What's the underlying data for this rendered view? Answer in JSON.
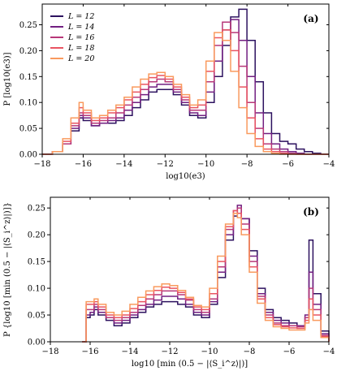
{
  "chart_data": [
    {
      "type": "line",
      "panel_label": "(a)",
      "xlabel": "log10(e3)",
      "ylabel": "P [log10(e3)]",
      "xlim": [
        -18,
        -4
      ],
      "ylim": [
        0,
        0.29
      ],
      "xticks": [
        -18,
        -16,
        -14,
        -12,
        -10,
        -8,
        -6,
        -4
      ],
      "yticks": [
        0.0,
        0.05,
        0.1,
        0.15,
        0.2,
        0.25
      ],
      "xtick_labels": [
        "−18",
        "−16",
        "−14",
        "−12",
        "−10",
        "−8",
        "−6",
        "−4"
      ],
      "ytick_labels": [
        "0.00",
        "0.05",
        "0.10",
        "0.15",
        "0.20",
        "0.25"
      ],
      "legend_position": "top-left",
      "x": [
        -18,
        -17.5,
        -17,
        -16.6,
        -16.2,
        -16,
        -15.6,
        -15.2,
        -14.8,
        -14.4,
        -14,
        -13.6,
        -13.2,
        -12.8,
        -12.4,
        -12,
        -11.6,
        -11.2,
        -10.8,
        -10.4,
        -10,
        -9.6,
        -9.2,
        -8.8,
        -8.4,
        -8,
        -7.6,
        -7.2,
        -6.8,
        -6.4,
        -6,
        -5.6,
        -5.2,
        -4.8,
        -4.4,
        -4
      ],
      "series": [
        {
          "name": "L = 12",
          "color": "#2c115f",
          "values": [
            0,
            0.005,
            0.02,
            0.045,
            0.07,
            0.065,
            0.055,
            0.06,
            0.06,
            0.065,
            0.075,
            0.09,
            0.105,
            0.12,
            0.125,
            0.125,
            0.115,
            0.095,
            0.075,
            0.07,
            0.1,
            0.15,
            0.21,
            0.265,
            0.28,
            0.22,
            0.14,
            0.08,
            0.04,
            0.025,
            0.02,
            0.01,
            0.005,
            0.002,
            0,
            0
          ]
        },
        {
          "name": "L = 14",
          "color": "#721f81",
          "values": [
            0,
            0.005,
            0.02,
            0.05,
            0.075,
            0.07,
            0.055,
            0.06,
            0.065,
            0.07,
            0.085,
            0.1,
            0.115,
            0.13,
            0.135,
            0.135,
            0.12,
            0.1,
            0.08,
            0.075,
            0.12,
            0.18,
            0.24,
            0.26,
            0.22,
            0.15,
            0.08,
            0.04,
            0.02,
            0.01,
            0.005,
            0.002,
            0,
            0,
            0,
            0
          ]
        },
        {
          "name": "L = 16",
          "color": "#b73779",
          "values": [
            0,
            0.005,
            0.02,
            0.055,
            0.08,
            0.075,
            0.06,
            0.065,
            0.07,
            0.08,
            0.095,
            0.11,
            0.125,
            0.14,
            0.145,
            0.14,
            0.125,
            0.105,
            0.085,
            0.085,
            0.14,
            0.21,
            0.255,
            0.235,
            0.17,
            0.1,
            0.05,
            0.02,
            0.01,
            0.005,
            0.002,
            0,
            0,
            0,
            0,
            0
          ]
        },
        {
          "name": "L = 18",
          "color": "#e95462",
          "values": [
            0,
            0.005,
            0.025,
            0.06,
            0.09,
            0.08,
            0.065,
            0.07,
            0.08,
            0.09,
            0.105,
            0.12,
            0.135,
            0.148,
            0.152,
            0.145,
            0.13,
            0.11,
            0.09,
            0.095,
            0.16,
            0.225,
            0.24,
            0.2,
            0.13,
            0.07,
            0.03,
            0.01,
            0.005,
            0.002,
            0,
            0,
            0,
            0,
            0,
            0
          ]
        },
        {
          "name": "L = 20",
          "color": "#f99a5e",
          "values": [
            0,
            0.005,
            0.03,
            0.07,
            0.1,
            0.085,
            0.07,
            0.075,
            0.085,
            0.095,
            0.11,
            0.13,
            0.145,
            0.155,
            0.158,
            0.15,
            0.135,
            0.115,
            0.095,
            0.105,
            0.18,
            0.235,
            0.22,
            0.16,
            0.09,
            0.04,
            0.015,
            0.005,
            0.002,
            0,
            0,
            0,
            0,
            0,
            0,
            0
          ]
        }
      ]
    },
    {
      "type": "line",
      "panel_label": "(b)",
      "xlabel": "log10 [min (0.5 − |⟨S_i^z⟩|)]",
      "ylabel": "P {log10 [min (0.5 − |⟨S_i^z⟩|)]}",
      "xlim": [
        -18,
        -4
      ],
      "ylim": [
        0,
        0.27
      ],
      "xticks": [
        -18,
        -16,
        -14,
        -12,
        -10,
        -8,
        -6,
        -4
      ],
      "yticks": [
        0.0,
        0.05,
        0.1,
        0.15,
        0.2,
        0.25
      ],
      "xtick_labels": [
        "−18",
        "−16",
        "−14",
        "−12",
        "−10",
        "−8",
        "−6",
        "−4"
      ],
      "ytick_labels": [
        "0.00",
        "0.05",
        "0.10",
        "0.15",
        "0.20",
        "0.25"
      ],
      "x": [
        -16.4,
        -16.2,
        -16,
        -15.8,
        -15.6,
        -15.2,
        -14.8,
        -14.4,
        -14,
        -13.6,
        -13.2,
        -12.8,
        -12.4,
        -12,
        -11.6,
        -11.2,
        -10.8,
        -10.4,
        -10,
        -9.6,
        -9.2,
        -8.8,
        -8.6,
        -8.4,
        -8,
        -7.6,
        -7.2,
        -6.8,
        -6.4,
        -6,
        -5.6,
        -5.2,
        -5,
        -4.8,
        -4.4,
        -4
      ],
      "series": [
        {
          "name": "L = 12",
          "color": "#2c115f",
          "values": [
            0,
            0.045,
            0.05,
            0.06,
            0.05,
            0.04,
            0.03,
            0.035,
            0.045,
            0.055,
            0.065,
            0.07,
            0.075,
            0.075,
            0.07,
            0.065,
            0.05,
            0.045,
            0.07,
            0.12,
            0.19,
            0.235,
            0.25,
            0.23,
            0.17,
            0.1,
            0.06,
            0.045,
            0.04,
            0.035,
            0.03,
            0.045,
            0.19,
            0.09,
            0.02,
            0
          ]
        },
        {
          "name": "L = 14",
          "color": "#721f81",
          "values": [
            0,
            0.05,
            0.055,
            0.065,
            0.055,
            0.045,
            0.035,
            0.04,
            0.05,
            0.06,
            0.07,
            0.078,
            0.085,
            0.085,
            0.08,
            0.07,
            0.055,
            0.05,
            0.075,
            0.13,
            0.2,
            0.24,
            0.255,
            0.23,
            0.16,
            0.09,
            0.055,
            0.04,
            0.035,
            0.03,
            0.03,
            0.05,
            0.13,
            0.07,
            0.015,
            0
          ]
        },
        {
          "name": "L = 16",
          "color": "#b73779",
          "values": [
            0,
            0.06,
            0.06,
            0.07,
            0.06,
            0.045,
            0.04,
            0.045,
            0.055,
            0.068,
            0.08,
            0.088,
            0.095,
            0.095,
            0.088,
            0.078,
            0.06,
            0.055,
            0.08,
            0.14,
            0.21,
            0.245,
            0.25,
            0.22,
            0.15,
            0.085,
            0.05,
            0.035,
            0.03,
            0.03,
            0.028,
            0.045,
            0.1,
            0.06,
            0.012,
            0
          ]
        },
        {
          "name": "L = 18",
          "color": "#e95462",
          "values": [
            0,
            0.07,
            0.07,
            0.075,
            0.065,
            0.05,
            0.045,
            0.05,
            0.062,
            0.075,
            0.088,
            0.096,
            0.102,
            0.1,
            0.092,
            0.08,
            0.065,
            0.06,
            0.09,
            0.15,
            0.215,
            0.245,
            0.24,
            0.21,
            0.14,
            0.08,
            0.045,
            0.032,
            0.028,
            0.026,
            0.025,
            0.04,
            0.08,
            0.05,
            0.01,
            0
          ]
        },
        {
          "name": "L = 20",
          "color": "#f99a5e",
          "values": [
            0,
            0.075,
            0.075,
            0.08,
            0.07,
            0.055,
            0.05,
            0.057,
            0.07,
            0.083,
            0.095,
            0.103,
            0.108,
            0.105,
            0.096,
            0.083,
            0.068,
            0.065,
            0.1,
            0.16,
            0.22,
            0.24,
            0.232,
            0.2,
            0.13,
            0.072,
            0.04,
            0.028,
            0.025,
            0.022,
            0.022,
            0.035,
            0.06,
            0.04,
            0.008,
            0
          ]
        }
      ]
    }
  ]
}
